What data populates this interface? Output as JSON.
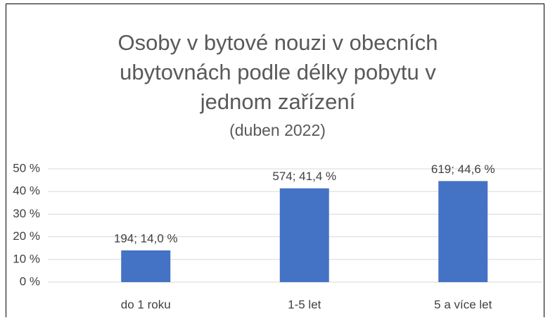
{
  "chart_data": {
    "type": "bar",
    "title": "Osoby v bytové nouzi v obecních ubytovnách podle délky pobytu v jednom zařízení",
    "subtitle": "(duben 2022)",
    "categories": [
      "do 1 roku",
      "1-5 let",
      "5 a více let"
    ],
    "values": [
      14.0,
      41.4,
      44.6
    ],
    "value_labels": [
      "194; 14,0 %",
      "574; 41,4 %",
      "619; 44,6 %"
    ],
    "color": "#4472c4",
    "ylim": [
      0,
      50
    ],
    "yticks": [
      {
        "value": 0,
        "label": "0 %"
      },
      {
        "value": 10,
        "label": "10 %"
      },
      {
        "value": 20,
        "label": "20 %"
      },
      {
        "value": 30,
        "label": "30 %"
      },
      {
        "value": 40,
        "label": "40 %"
      },
      {
        "value": 50,
        "label": "50 %"
      }
    ],
    "grid": true
  }
}
